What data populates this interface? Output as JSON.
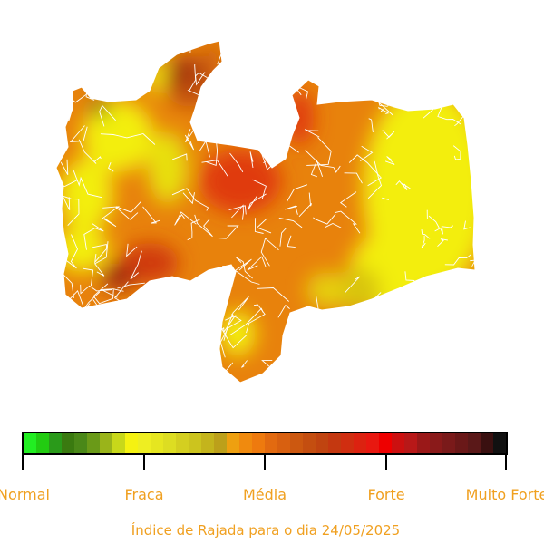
{
  "map": {
    "region": "Paraíba",
    "fill_colors": {
      "green": "#2a7a1a",
      "yellow": "#f3ee10",
      "yellow_orange": "#d8b010",
      "orange": "#e8820c",
      "dark_orange": "#c8600a",
      "red": "#e03a10",
      "dark_red": "#8a1a10",
      "border": "#ffffff"
    }
  },
  "legend": {
    "colors": [
      "#22ee22",
      "#22cc11",
      "#2a9a1a",
      "#3a7a10",
      "#4a8818",
      "#6a9a18",
      "#9ab41a",
      "#c8d81a",
      "#f5f211",
      "#eeee22",
      "#e6e620",
      "#dddd22",
      "#d4cf20",
      "#ccc41e",
      "#c4b41c",
      "#bca01a",
      "#eea010",
      "#f08a0e",
      "#ee7a0e",
      "#e26a10",
      "#d86010",
      "#cc5810",
      "#c44e10",
      "#c04410",
      "#c43810",
      "#d02e10",
      "#dc2210",
      "#e81810",
      "#ee0000",
      "#cc1010",
      "#b81818",
      "#9a1818",
      "#8a1a1a",
      "#7a1a1a",
      "#6a1818",
      "#5a1818",
      "#3a1010",
      "#111111"
    ],
    "labels": [
      "Normal",
      "Fraca",
      "Média",
      "Forte",
      "Muito Forte"
    ],
    "caption": "Índice de Rajada para o dia 24/05/2025"
  }
}
